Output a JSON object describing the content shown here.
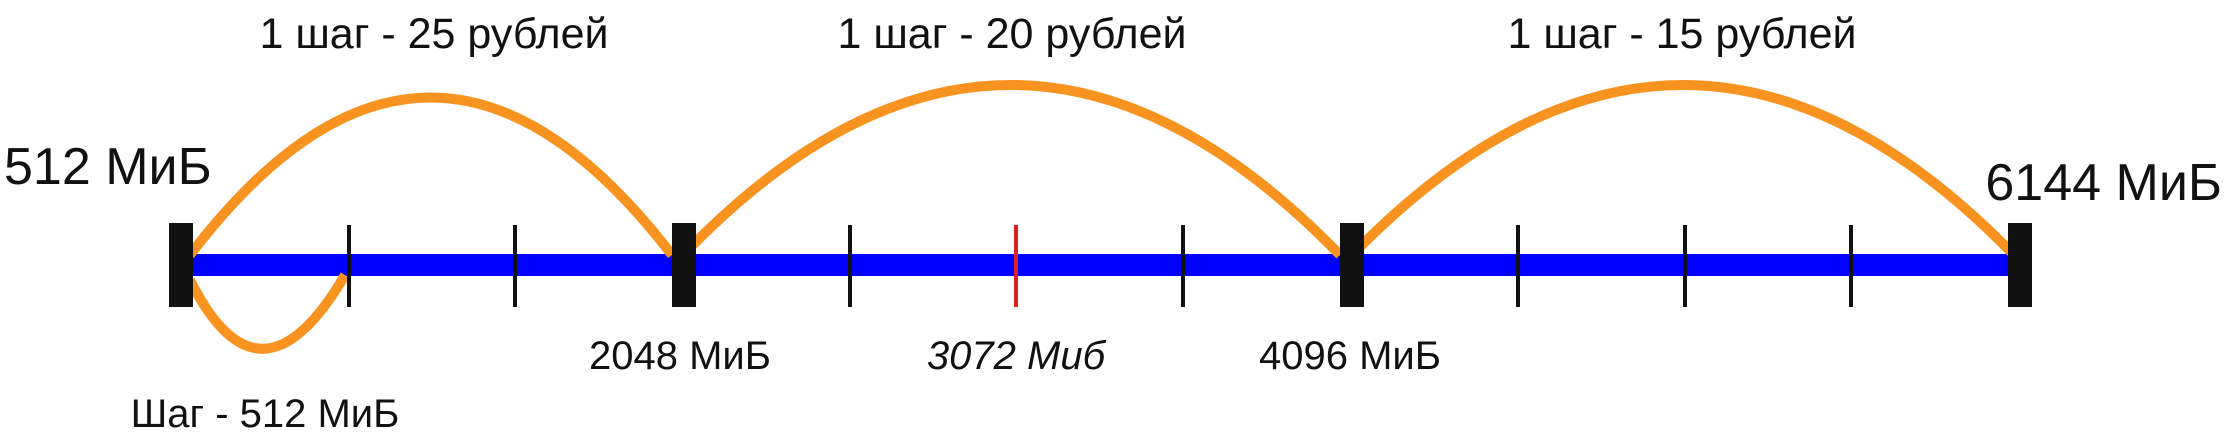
{
  "diagram": {
    "start_label": "512 МиБ",
    "end_label": "6144 МиБ",
    "marker_2048": "2048 МиБ",
    "marker_3072": "3072 Миб",
    "marker_4096": "4096 МиБ",
    "step_label": "Шаг - 512 МиБ",
    "ranges": [
      {
        "label": "1 шаг - 25 рублей"
      },
      {
        "label": "1 шаг - 20 рублей"
      },
      {
        "label": "1 шаг - 15 рублей"
      }
    ]
  },
  "colors": {
    "axis": "#0000ff",
    "arc": "#f7931e",
    "major_tick": "#111111",
    "minor_tick": "#111111",
    "highlight_tick": "#e02020"
  }
}
